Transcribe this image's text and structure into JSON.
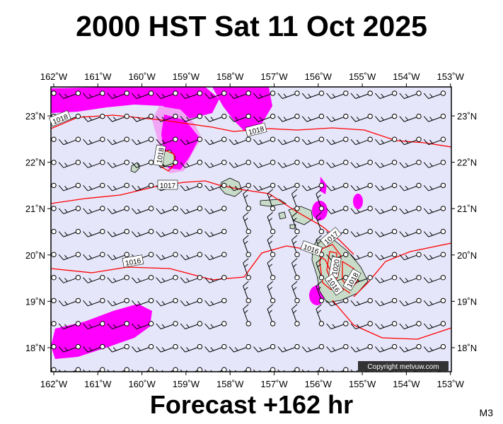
{
  "title": "2000 HST Sat 11 Oct 2025",
  "footer": "Forecast +162 hr",
  "model_label": "M3",
  "copyright": "Copyright metvuw.com",
  "map": {
    "lon_labels": [
      "162˚W",
      "161˚W",
      "160˚W",
      "159˚W",
      "158˚W",
      "157˚W",
      "156˚W",
      "155˚W",
      "154˚W",
      "153˚W"
    ],
    "lat_labels": [
      "23˚N",
      "22˚N",
      "21˚N",
      "20˚N",
      "19˚N",
      "18˚N"
    ],
    "isobar_labels": [
      "1018",
      "1018",
      "1018",
      "1017",
      "1017",
      "1016",
      "1016",
      "1020",
      "1016",
      "1018"
    ],
    "colors": {
      "ocean": "#e6e6fa",
      "rain": "#ff00ff",
      "light_rain": "#f0a6f5",
      "land": "#c9dcc9",
      "isobar": "#ff0000",
      "barb": "#000000"
    },
    "layers": [
      "isobars",
      "wind-barbs",
      "precipitation",
      "land"
    ]
  }
}
